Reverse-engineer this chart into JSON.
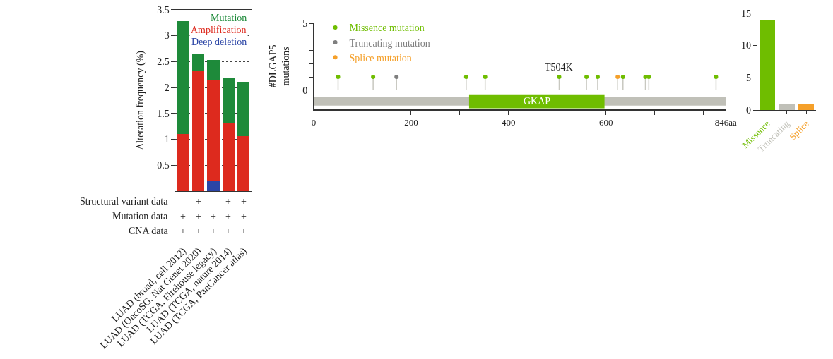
{
  "chart_data": [
    {
      "type": "bar",
      "stacked": true,
      "ylabel": "Alteration frequency (%)",
      "categories": [
        "LUAD (broad, cell 2012)",
        "LUAD (OncoSG, Nat Genet 2020)",
        "LUAD (TCGA, Firehouse legacy)",
        "LUAD (TCGA, nature 2014)",
        "LUAD (TCGA, PanCancer atlas)"
      ],
      "series": [
        {
          "name": "Deep deletion",
          "color": "#2b45a6",
          "values": [
            0,
            0,
            0.2,
            0,
            0
          ]
        },
        {
          "name": "Amplification",
          "color": "#dd2a1e",
          "values": [
            1.1,
            2.33,
            1.94,
            1.31,
            1.06
          ]
        },
        {
          "name": "Mutation",
          "color": "#1e8a3a",
          "values": [
            2.18,
            0.32,
            0.39,
            0.87,
            1.05
          ]
        }
      ],
      "ylim": [
        0,
        3.5
      ],
      "yticks": [
        0.5,
        1,
        1.5,
        2,
        2.5,
        3,
        3.5
      ],
      "grid": "y",
      "legend": "top right",
      "annotations": [
        "Structural variant data",
        "–",
        "+",
        "–",
        "+",
        "+",
        "Mutation data",
        "+",
        "+",
        "+",
        "+",
        "+",
        "CNA data",
        "+",
        "+",
        "+",
        "+",
        "+"
      ]
    },
    {
      "type": "lollipop",
      "ylabel": "#DLGAP5 mutations",
      "marker": "circle",
      "legend": "top left",
      "series": [
        {
          "name": "Missence mutation",
          "color": "#6fbd00",
          "x": [
            50,
            122,
            313,
            352,
            504,
            560,
            583,
            635,
            681,
            688,
            826
          ],
          "values": [
            1,
            1,
            1,
            1,
            1,
            1,
            1,
            1,
            1,
            1,
            1
          ]
        },
        {
          "name": "Truncating mutation",
          "color": "#7f7f7f",
          "x": [
            170
          ],
          "values": [
            1
          ]
        },
        {
          "name": "Splice mutation",
          "color": "#f5a02a",
          "x": [
            624
          ],
          "values": [
            1
          ]
        }
      ],
      "xlim": [
        0,
        846
      ],
      "xticks": [
        0,
        {
          "value": 100,
          "label": null
        },
        200,
        {
          "value": 300,
          "label": null
        },
        400,
        {
          "value": 500,
          "label": null
        },
        600,
        {
          "value": 700,
          "label": null
        },
        {
          "value": 800,
          "label": null
        },
        {
          "value": 846,
          "label": "846aa"
        }
      ],
      "ylim": [
        -1.4,
        5
      ],
      "yticks": [
        0,
        {
          "value": 1,
          "label": null
        },
        {
          "value": 2,
          "label": null
        },
        {
          "value": 3,
          "label": null
        },
        {
          "value": 4,
          "label": null
        },
        5
      ],
      "bands": [
        {
          "axis": "x",
          "from": 0,
          "to": 846,
          "label": null,
          "color": "#c0c0b8"
        },
        {
          "axis": "x",
          "from": 319,
          "to": 597,
          "label": "GKAP",
          "color": "#6fbd00"
        }
      ],
      "annotations": [
        {
          "text": "T504K",
          "x": 504,
          "y": 1
        }
      ]
    },
    {
      "type": "bar",
      "categories": [
        "Missence",
        "Truncating",
        "Splice"
      ],
      "values": [
        14,
        1,
        1
      ],
      "colors": [
        "#6fbd00",
        "#c0c0b8",
        "#f5a02a"
      ],
      "ylim": [
        0,
        15
      ],
      "yticks": [
        0,
        5,
        10,
        15
      ]
    }
  ]
}
